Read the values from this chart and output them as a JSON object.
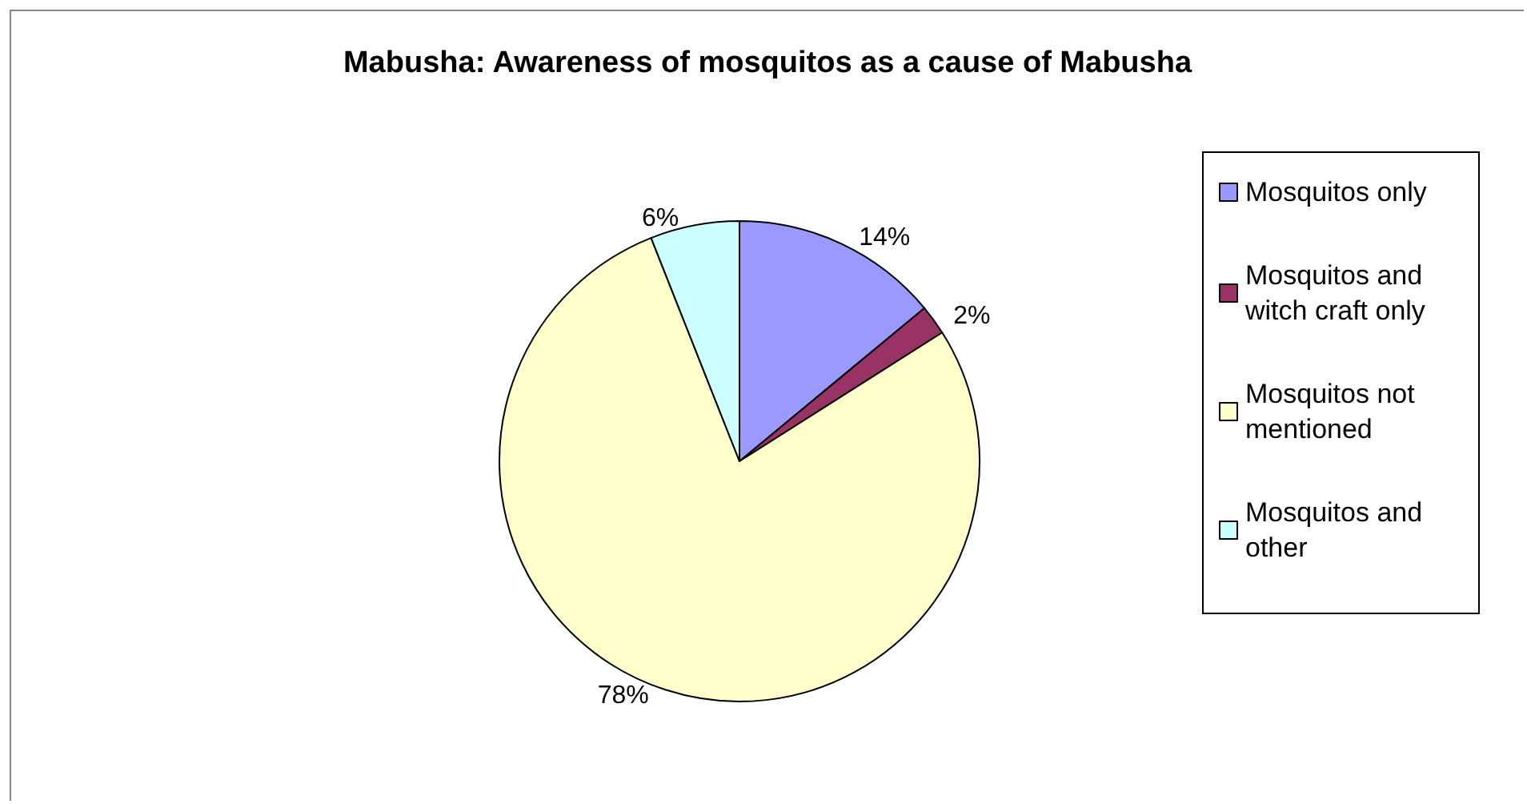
{
  "chart_data": {
    "type": "pie",
    "title": "Mabusha: Awareness of mosquitos as a cause of Mabusha",
    "categories": [
      "Mosquitos only",
      "Mosquitos and witch craft only",
      "Mosquitos not mentioned",
      "Mosquitos and other"
    ],
    "values": [
      14,
      2,
      78,
      6
    ],
    "colors": [
      "#9999ff",
      "#993366",
      "#ffffcc",
      "#ccffff"
    ],
    "value_labels": [
      "14%",
      "2%",
      "78%",
      "6%"
    ],
    "legend": "right"
  }
}
